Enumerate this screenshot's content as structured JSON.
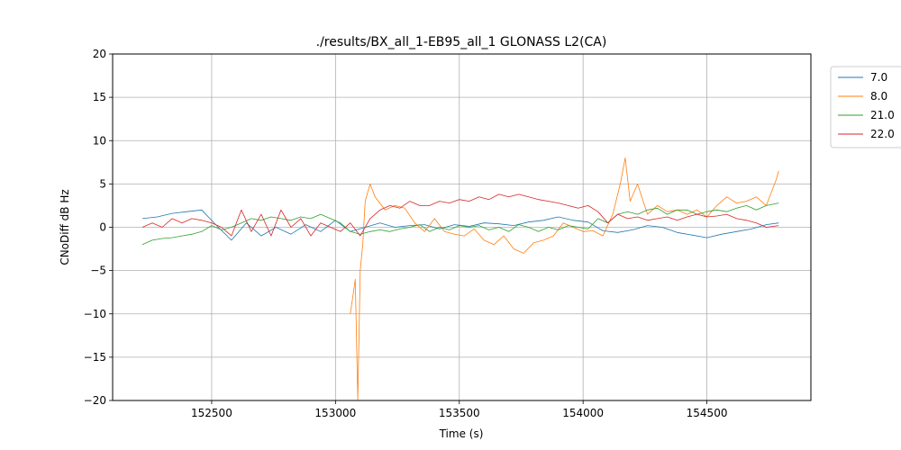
{
  "chart_data": {
    "type": "line",
    "title": "./results/BX_all_1-EB95_all_1 GLONASS L2(CA)",
    "xlabel": "Time (s)",
    "ylabel": "CNoDiff dB Hz",
    "xlim": [
      152100,
      154920
    ],
    "ylim": [
      -20,
      20
    ],
    "xticks": [
      152500,
      153000,
      153500,
      154000,
      154500
    ],
    "yticks": [
      -20,
      -15,
      -10,
      -5,
      0,
      5,
      10,
      15,
      20
    ],
    "xtick_labels": [
      "152500",
      "153000",
      "153500",
      "154000",
      "154500"
    ],
    "ytick_labels": [
      "−20",
      "−15",
      "−10",
      "−5",
      "0",
      "5",
      "10",
      "15",
      "20"
    ],
    "grid": true,
    "legend_position": "outside-top-right",
    "series": [
      {
        "name": "7.0",
        "color": "#1f77b4",
        "x": [
          152220,
          152280,
          152340,
          152400,
          152460,
          152520,
          152580,
          152640,
          152700,
          152760,
          152820,
          152880,
          152940,
          153000,
          153060,
          153120,
          153180,
          153240,
          153300,
          153360,
          153420,
          153480,
          153540,
          153600,
          153660,
          153720,
          153780,
          153840,
          153900,
          153960,
          154020,
          154080,
          154140,
          154200,
          154260,
          154320,
          154380,
          154440,
          154500,
          154560,
          154620,
          154680,
          154740,
          154790
        ],
        "y": [
          1.0,
          1.2,
          1.6,
          1.8,
          2.0,
          0.2,
          -1.5,
          0.5,
          -1.0,
          0.0,
          -0.8,
          0.3,
          -0.5,
          0.8,
          -0.5,
          0.0,
          0.5,
          0.0,
          0.2,
          0.3,
          -0.2,
          0.3,
          0.1,
          0.5,
          0.4,
          0.2,
          0.6,
          0.8,
          1.2,
          0.8,
          0.6,
          -0.4,
          -0.6,
          -0.3,
          0.2,
          0.0,
          -0.6,
          -0.9,
          -1.2,
          -0.8,
          -0.5,
          -0.2,
          0.3,
          0.5
        ]
      },
      {
        "name": "8.0",
        "color": "#ff7f0e",
        "x": [
          153060,
          153070,
          153080,
          153090,
          153100,
          153110,
          153120,
          153140,
          153160,
          153200,
          153240,
          153280,
          153320,
          153360,
          153400,
          153440,
          153480,
          153520,
          153560,
          153600,
          153640,
          153680,
          153720,
          153760,
          153800,
          153840,
          153880,
          153920,
          153960,
          154000,
          154040,
          154080,
          154120,
          154150,
          154170,
          154190,
          154220,
          154260,
          154300,
          154340,
          154380,
          154420,
          154460,
          154500,
          154540,
          154580,
          154620,
          154660,
          154700,
          154740,
          154780,
          154790
        ],
        "y": [
          -10.0,
          -8.0,
          -6.0,
          -20.0,
          -5.0,
          -2.0,
          3.0,
          5.0,
          3.5,
          2.0,
          2.5,
          2.2,
          0.5,
          -0.5,
          1.0,
          -0.5,
          -0.8,
          -1.0,
          -0.2,
          -1.5,
          -2.0,
          -1.0,
          -2.5,
          -3.0,
          -1.8,
          -1.5,
          -1.0,
          0.5,
          0.0,
          -0.5,
          -0.4,
          -1.0,
          1.5,
          5.0,
          8.0,
          3.0,
          5.0,
          1.5,
          2.5,
          1.8,
          2.0,
          1.5,
          2.0,
          1.2,
          2.5,
          3.5,
          2.8,
          3.0,
          3.5,
          2.5,
          5.5,
          6.5
        ]
      },
      {
        "name": "21.0",
        "color": "#2ca02c",
        "x": [
          152220,
          152260,
          152300,
          152340,
          152380,
          152420,
          152460,
          152500,
          152540,
          152580,
          152620,
          152660,
          152700,
          152740,
          152780,
          152820,
          152860,
          152900,
          152940,
          152980,
          153020,
          153060,
          153100,
          153140,
          153180,
          153220,
          153260,
          153300,
          153340,
          153380,
          153420,
          153460,
          153500,
          153540,
          153580,
          153620,
          153660,
          153700,
          153740,
          153780,
          153820,
          153860,
          153900,
          153940,
          153980,
          154020,
          154060,
          154100,
          154140,
          154180,
          154220,
          154260,
          154300,
          154340,
          154380,
          154420,
          154460,
          154500,
          154540,
          154580,
          154620,
          154660,
          154700,
          154740,
          154790
        ],
        "y": [
          -2.0,
          -1.5,
          -1.3,
          -1.2,
          -1.0,
          -0.8,
          -0.5,
          0.2,
          -0.3,
          0.0,
          0.5,
          1.0,
          0.8,
          1.2,
          1.0,
          0.8,
          1.2,
          1.0,
          1.5,
          1.0,
          0.5,
          -0.5,
          -0.8,
          -0.5,
          -0.3,
          -0.5,
          -0.2,
          0.0,
          0.3,
          -0.5,
          0.0,
          -0.3,
          0.2,
          0.0,
          0.2,
          -0.3,
          0.0,
          -0.5,
          0.3,
          0.0,
          -0.5,
          0.0,
          -0.3,
          0.2,
          0.0,
          -0.2,
          1.0,
          0.5,
          1.5,
          1.8,
          1.5,
          2.0,
          2.2,
          1.5,
          2.0,
          2.0,
          1.5,
          1.8,
          2.0,
          1.8,
          2.2,
          2.5,
          2.0,
          2.5,
          2.8
        ]
      },
      {
        "name": "22.0",
        "color": "#d62728",
        "x": [
          152220,
          152260,
          152300,
          152340,
          152380,
          152420,
          152460,
          152500,
          152540,
          152580,
          152620,
          152660,
          152700,
          152740,
          152780,
          152820,
          152860,
          152900,
          152940,
          152980,
          153020,
          153060,
          153100,
          153140,
          153180,
          153220,
          153260,
          153300,
          153340,
          153380,
          153420,
          153460,
          153500,
          153540,
          153580,
          153620,
          153660,
          153700,
          153740,
          153780,
          153820,
          153860,
          153900,
          153940,
          153980,
          154020,
          154060,
          154100,
          154140,
          154180,
          154220,
          154260,
          154300,
          154340,
          154380,
          154420,
          154460,
          154500,
          154540,
          154580,
          154620,
          154660,
          154700,
          154740,
          154790
        ],
        "y": [
          0.0,
          0.5,
          0.0,
          1.0,
          0.5,
          1.0,
          0.8,
          0.5,
          0.0,
          -1.0,
          2.0,
          -0.5,
          1.5,
          -1.0,
          2.0,
          0.0,
          1.0,
          -1.0,
          0.5,
          0.0,
          -0.5,
          0.5,
          -1.0,
          1.0,
          2.0,
          2.5,
          2.2,
          3.0,
          2.5,
          2.5,
          3.0,
          2.8,
          3.2,
          3.0,
          3.5,
          3.2,
          3.8,
          3.5,
          3.8,
          3.5,
          3.2,
          3.0,
          2.8,
          2.5,
          2.2,
          2.5,
          1.8,
          0.5,
          1.5,
          1.0,
          1.2,
          0.8,
          1.0,
          1.2,
          0.8,
          1.2,
          1.5,
          1.2,
          1.3,
          1.5,
          1.0,
          0.8,
          0.5,
          0.0,
          0.2
        ]
      }
    ]
  }
}
